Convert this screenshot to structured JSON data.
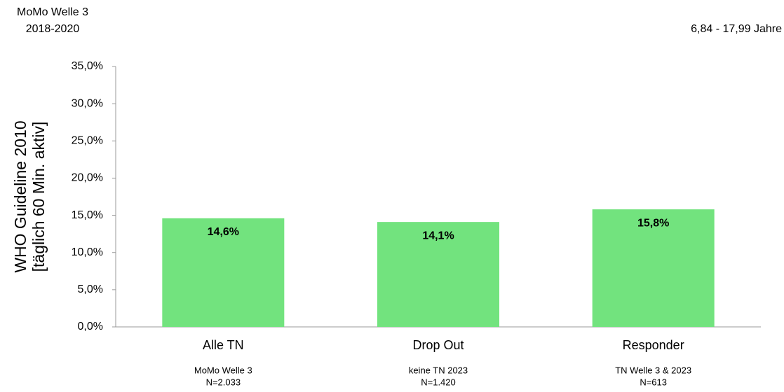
{
  "chart_data": {
    "type": "bar",
    "title": "MoMo Welle 3",
    "subtitle": "2018-2020",
    "annotation": "6,84 - 17,99 Jahre",
    "y_label": [
      "WHO Guideline 2010",
      "[täglich  60 Min. aktiv]"
    ],
    "categories": [
      "Alle TN",
      "Drop Out",
      "Responder"
    ],
    "category_notes": [
      [
        "MoMo Welle 3",
        "N=2.033"
      ],
      [
        "keine TN 2023",
        "N=1.420"
      ],
      [
        "TN Welle 3 & 2023",
        "N=613"
      ]
    ],
    "values": [
      14.6,
      14.1,
      15.8
    ],
    "value_labels": [
      "14,6%",
      "14,1%",
      "15,8%"
    ],
    "color": "#72e37e",
    "ylim": [
      0,
      35
    ],
    "yticks": [
      {
        "value": 0,
        "label": "0,0%"
      },
      {
        "value": 5,
        "label": "5,0%"
      },
      {
        "value": 10,
        "label": "10,0%"
      },
      {
        "value": 15,
        "label": "15,0%"
      },
      {
        "value": 20,
        "label": "20,0%"
      },
      {
        "value": 25,
        "label": "25,0%"
      },
      {
        "value": 30,
        "label": "30,0%"
      },
      {
        "value": 35,
        "label": "35,0%"
      }
    ],
    "grid": false
  }
}
